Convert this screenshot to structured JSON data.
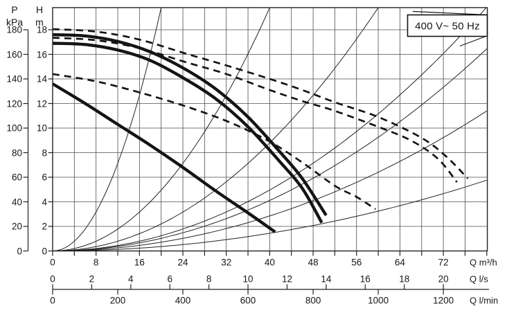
{
  "legend": {
    "label": "400 V~ 50 Hz"
  },
  "colors": {
    "ink": "#161616",
    "curve": "#141414",
    "grid": "#4d4d4d",
    "frame": "#222222",
    "background": "#ffffff"
  },
  "axes": {
    "pressure": {
      "name": "P",
      "unit": "kPa",
      "ticks": [
        180,
        160,
        140,
        120,
        100,
        80,
        60,
        40,
        20,
        0
      ]
    },
    "head": {
      "name": "H",
      "unit": "m",
      "ticks": [
        18,
        16,
        14,
        12,
        10,
        8,
        6,
        4,
        2,
        0
      ]
    },
    "flow_m3h": {
      "unit": "Q m³/h",
      "ticks": [
        0,
        8,
        16,
        24,
        32,
        40,
        48,
        56,
        64,
        72
      ]
    },
    "flow_ls": {
      "unit": "Q l/s",
      "ticks": [
        0,
        2,
        4,
        6,
        8,
        10,
        12,
        14,
        16,
        18,
        20
      ]
    },
    "flow_lmin": {
      "unit": "Q l/min",
      "ticks": [
        0,
        200,
        400,
        600,
        800,
        1000,
        1200
      ]
    }
  },
  "chart_data": {
    "type": "line",
    "title": "400 V~ 50 Hz",
    "xlabel": "Q m³/h | Q l/s | Q l/min",
    "ylabel": "H m | P kPa",
    "x_range_m3h": [
      0,
      80
    ],
    "y_range_m": [
      0,
      19.8
    ],
    "grid": {
      "x_step_m3h": 4,
      "y_step_m": 2,
      "on": true
    },
    "series": [
      {
        "name": "pump-curve-solid-1",
        "style": "solid-thick",
        "points": [
          [
            0,
            17.6
          ],
          [
            6,
            17.5
          ],
          [
            12,
            17.05
          ],
          [
            18,
            16.2
          ],
          [
            24,
            14.9
          ],
          [
            30,
            13.2
          ],
          [
            36,
            10.9
          ],
          [
            42,
            8.0
          ],
          [
            46,
            5.9
          ],
          [
            50.4,
            2.9
          ]
        ]
      },
      {
        "name": "pump-curve-solid-2",
        "style": "solid-thick",
        "points": [
          [
            0,
            16.9
          ],
          [
            6,
            16.8
          ],
          [
            12,
            16.35
          ],
          [
            18,
            15.5
          ],
          [
            24,
            14.1
          ],
          [
            30,
            12.4
          ],
          [
            36,
            10.1
          ],
          [
            42,
            7.2
          ],
          [
            46,
            5.1
          ],
          [
            49.6,
            2.3
          ]
        ]
      },
      {
        "name": "pump-curve-solid-3",
        "style": "solid-thick",
        "points": [
          [
            0,
            13.6
          ],
          [
            6,
            12.0
          ],
          [
            12,
            10.3
          ],
          [
            18,
            8.6
          ],
          [
            24,
            6.8
          ],
          [
            30,
            4.9
          ],
          [
            36,
            3.1
          ],
          [
            41,
            1.55
          ]
        ]
      },
      {
        "name": "pump-curve-dashed-1",
        "style": "dashed-thick",
        "points": [
          [
            0,
            18.05
          ],
          [
            8,
            17.85
          ],
          [
            16,
            17.2
          ],
          [
            25,
            16.0
          ],
          [
            32,
            15.1
          ],
          [
            40,
            14.0
          ],
          [
            46,
            13.1
          ],
          [
            52,
            12.1
          ],
          [
            60,
            10.9
          ],
          [
            68,
            9.2
          ],
          [
            72.5,
            7.7
          ],
          [
            76.5,
            5.9
          ]
        ]
      },
      {
        "name": "pump-curve-dashed-2",
        "style": "dashed-thick",
        "points": [
          [
            0,
            17.35
          ],
          [
            8,
            17.15
          ],
          [
            16,
            16.5
          ],
          [
            25,
            15.3
          ],
          [
            32,
            14.4
          ],
          [
            40,
            13.1
          ],
          [
            46,
            12.2
          ],
          [
            52,
            11.4
          ],
          [
            60,
            10.1
          ],
          [
            66,
            9.0
          ],
          [
            71,
            7.5
          ],
          [
            74.5,
            5.6
          ]
        ]
      },
      {
        "name": "pump-curve-dashed-3",
        "style": "dashed-thick",
        "points": [
          [
            0,
            14.4
          ],
          [
            8,
            13.8
          ],
          [
            16,
            12.9
          ],
          [
            25,
            11.7
          ],
          [
            33,
            10.4
          ],
          [
            40,
            8.9
          ],
          [
            46,
            7.2
          ],
          [
            52,
            5.3
          ],
          [
            56,
            4.4
          ],
          [
            59.5,
            3.4
          ]
        ]
      }
    ],
    "system_curves": {
      "description": "thin parabolic curves through origin, H = k * Q^2",
      "coefficients": [
        0.0495,
        0.012375,
        0.0055,
        0.0031,
        0.00257,
        0.00178,
        0.0009
      ]
    }
  }
}
